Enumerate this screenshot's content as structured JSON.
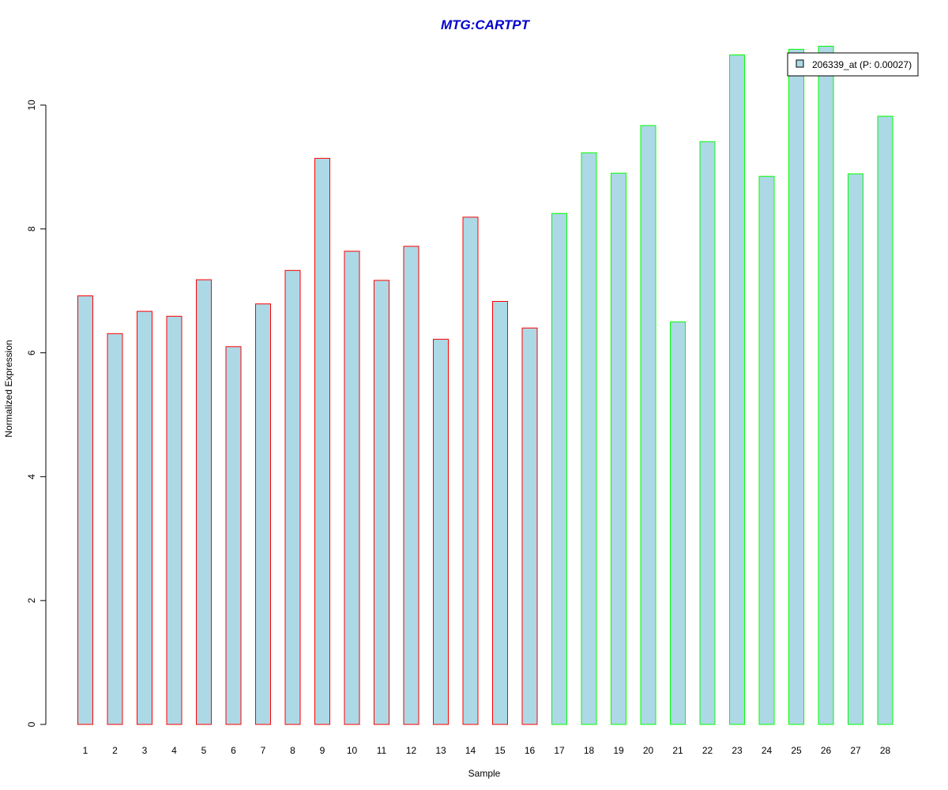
{
  "chart_data": {
    "type": "bar",
    "title": "MTG:CARTPT",
    "xlabel": "Sample",
    "ylabel": "Normalized Expression",
    "ylim": [
      0,
      11
    ],
    "yticks": [
      0,
      2,
      4,
      6,
      8,
      10
    ],
    "grid": false,
    "legend_position": "top-right",
    "categories": [
      "1",
      "2",
      "3",
      "4",
      "5",
      "6",
      "7",
      "8",
      "9",
      "10",
      "11",
      "12",
      "13",
      "14",
      "15",
      "16",
      "17",
      "18",
      "19",
      "20",
      "21",
      "22",
      "23",
      "24",
      "25",
      "26",
      "27",
      "28"
    ],
    "series": [
      {
        "name": "206339_at (P: 0.00027)",
        "values": [
          6.92,
          6.31,
          6.67,
          6.59,
          7.18,
          6.1,
          6.79,
          7.33,
          9.14,
          7.64,
          7.17,
          7.72,
          6.22,
          8.19,
          6.83,
          6.4,
          8.25,
          9.23,
          8.9,
          9.67,
          6.5,
          9.41,
          10.81,
          8.85,
          10.9,
          10.95,
          8.89,
          9.82
        ]
      }
    ],
    "groups": [
      6,
      6,
      6,
      6,
      6,
      6,
      6,
      6,
      6,
      6,
      6,
      6,
      6,
      6,
      6,
      6,
      1,
      1,
      1,
      1,
      1,
      1,
      1,
      1,
      1,
      1,
      1,
      1
    ]
  },
  "colors": {
    "bar_fill": "#add8e6",
    "group_1_border": "#00ff00",
    "group_6_border": "#ff0000",
    "title": "#0000cd",
    "axis": "#000000"
  }
}
